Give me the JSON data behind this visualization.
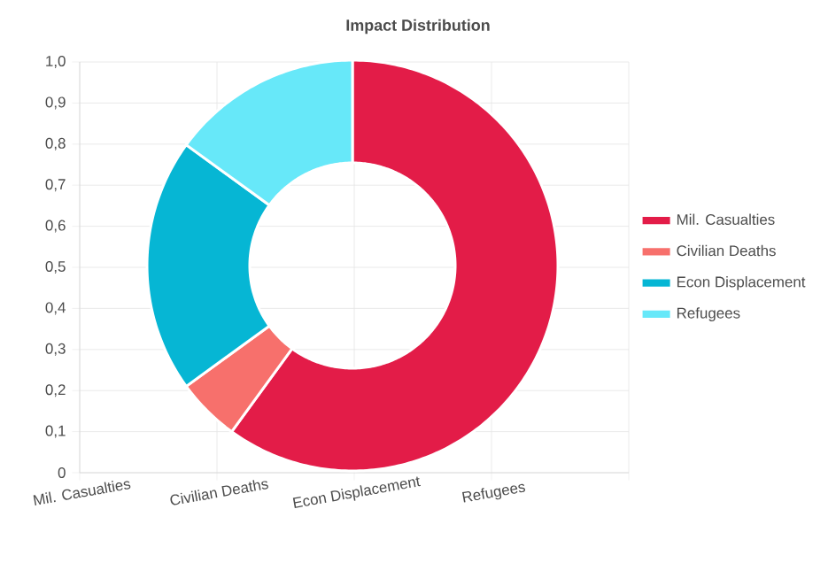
{
  "chart_data": {
    "type": "donut",
    "title": "Impact Distribution",
    "categories": [
      "Mil. Casualties",
      "Civilian Deaths",
      "Econ Displacement",
      "Refugees"
    ],
    "values": [
      60,
      5,
      20,
      15
    ],
    "colors": [
      "#e31c48",
      "#f7706c",
      "#06b6d4",
      "#67e8f9"
    ],
    "legend": "right",
    "grid": true,
    "annotations": [
      "0",
      "0,1",
      "0,2",
      "0,3",
      "0,4",
      "0,5",
      "0,6",
      "0,7",
      "0,8",
      "0,9",
      "1,0"
    ]
  }
}
